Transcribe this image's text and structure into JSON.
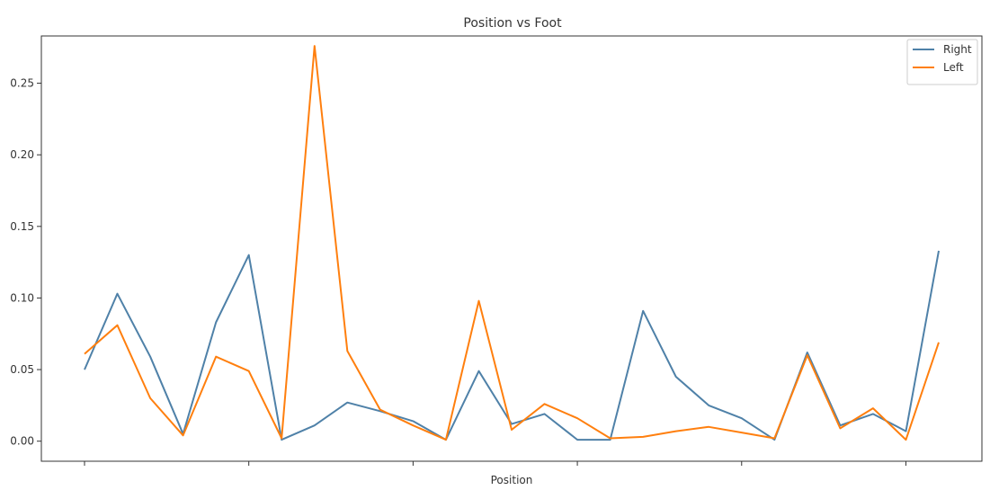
{
  "chart_data": {
    "type": "line",
    "title": "Position vs Foot",
    "xlabel": "Position",
    "ylabel": "",
    "ylim": [
      -0.014,
      0.283
    ],
    "yticks": [
      0.0,
      0.05,
      0.1,
      0.15,
      0.2,
      0.25
    ],
    "ytick_labels": [
      "0.00",
      "0.05",
      "0.10",
      "0.15",
      "0.20",
      "0.25"
    ],
    "x_points": 27,
    "legend_position": "top-right",
    "grid": false,
    "series": [
      {
        "name": "Right",
        "color": "#4f81a8",
        "values": [
          0.05,
          0.103,
          0.059,
          0.005,
          0.083,
          0.13,
          0.001,
          0.011,
          0.027,
          0.021,
          0.014,
          0.001,
          0.049,
          0.012,
          0.019,
          0.001,
          0.001,
          0.091,
          0.045,
          0.025,
          0.016,
          0.001,
          0.062,
          0.011,
          0.019,
          0.007,
          0.133
        ]
      },
      {
        "name": "Left",
        "color": "#ff7f0e",
        "values": [
          0.061,
          0.081,
          0.03,
          0.004,
          0.059,
          0.049,
          0.002,
          0.276,
          0.063,
          0.022,
          0.011,
          0.001,
          0.098,
          0.008,
          0.026,
          0.016,
          0.002,
          0.003,
          0.007,
          0.01,
          0.006,
          0.002,
          0.06,
          0.009,
          0.023,
          0.001,
          0.069
        ]
      }
    ]
  }
}
